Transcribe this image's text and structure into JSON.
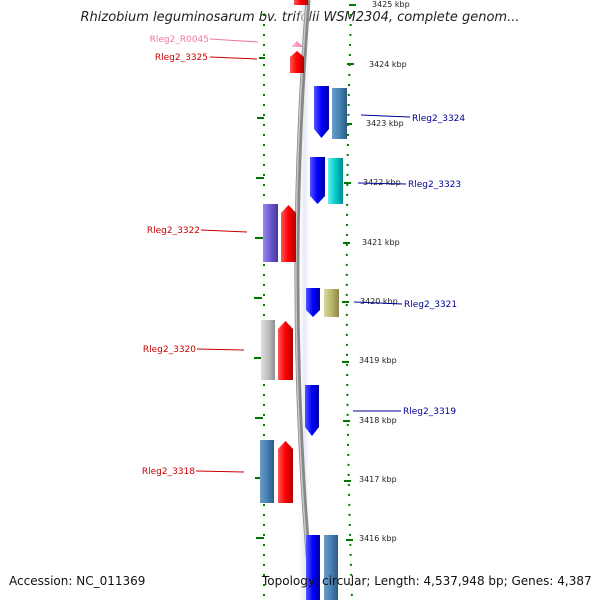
{
  "title": "Rhizobium leguminosarum bv. trifolii WSM2304, complete genom...",
  "footer": {
    "accession": "Accession: NC_011369",
    "summary": "Topology: circular; Length: 4,537,948 bp; Genes: 4,387"
  },
  "colors": {
    "left_label": "#cc0000",
    "right_label": "#000099",
    "rna_label": "#ee77aa",
    "ruler": "#007700",
    "backbone": "#888888"
  },
  "scale_labels": [
    "3425 kbp",
    "3424 kbp",
    "3423 kbp",
    "3422 kbp",
    "3421 kbp",
    "3420 kbp",
    "3419 kbp",
    "3418 kbp",
    "3417 kbp",
    "3416 kbp"
  ],
  "left_labels": [
    {
      "text": "Rleg2_R0045",
      "color": "#ee77aa"
    },
    {
      "text": "Rleg2_3325",
      "color": "#cc0000"
    },
    {
      "text": "Rleg2_3322",
      "color": "#cc0000"
    },
    {
      "text": "Rleg2_3320",
      "color": "#cc0000"
    },
    {
      "text": "Rleg2_3318",
      "color": "#cc0000"
    }
  ],
  "right_labels": [
    {
      "text": "Rleg2_3324",
      "color": "#000099"
    },
    {
      "text": "Rleg2_3323",
      "color": "#000099"
    },
    {
      "text": "Rleg2_3321",
      "color": "#000099"
    },
    {
      "text": "Rleg2_3319",
      "color": "#000099"
    }
  ]
}
